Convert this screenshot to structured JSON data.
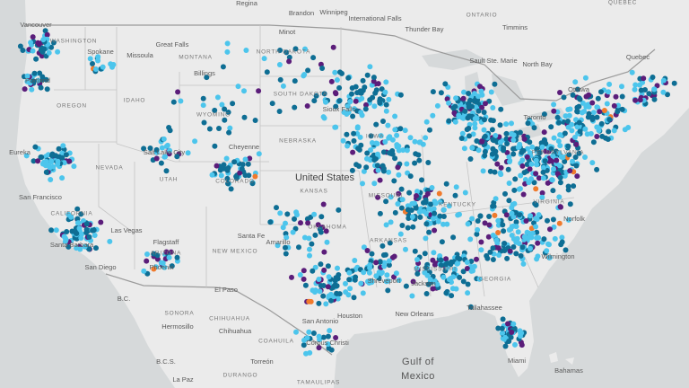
{
  "map": {
    "labels": [
      "Regina",
      "Brandon",
      "Winnipeg",
      "International Falls",
      "ONTARIO",
      "QUEBEC",
      "Thunder Bay",
      "Timmins",
      "Sault Ste. Marie",
      "North Bay",
      "Ottawa",
      "Quebec",
      "Vancouver",
      "WASHINGTON",
      "Spokane",
      "Great Falls",
      "Missoula",
      "MONTANA",
      "Billings",
      "Minot",
      "NORTH DAKOTA",
      "SOUTH DAKOTA",
      "Portland",
      "OREGON",
      "IDAHO",
      "WYOMING",
      "Sioux Falls",
      "Eureka",
      "NEVADA",
      "Cheyenne",
      "Salt Lake City",
      "NEBRASKA",
      "IOWA",
      "UTAH",
      "COLORADO",
      "United States",
      "KANSAS",
      "MISSOURI",
      "Toronto",
      "PENNSYLVANIA",
      "San Francisco",
      "CALIFORNIA",
      "Las Vegas",
      "KENTUCKY",
      "VIRGINIA",
      "Norfolk",
      "Santa Barbara",
      "Flagstaff",
      "ARIZONA",
      "NEW MEXICO",
      "Santa Fe",
      "Amarillo",
      "OKLAHOMA",
      "ARKANSAS",
      "MISSISSIPPI",
      "GEORGIA",
      "Wilmington",
      "Phoenix",
      "San Diego",
      "El Paso",
      "Shreveport",
      "Jackson",
      "Tallahassee",
      "SONORA",
      "CHIHUAHUA",
      "Hermosillo",
      "San Antonio",
      "Houston",
      "New Orleans",
      "Corpus Christi",
      "COAHUILA",
      "Gulf of",
      "Mexico",
      "Miami",
      "Bahamas",
      "B.C.",
      "B.C.S.",
      "La Paz",
      "DURANGO",
      "Torreón",
      "TAMAULIPAS",
      "Chihuahua"
    ]
  }
}
